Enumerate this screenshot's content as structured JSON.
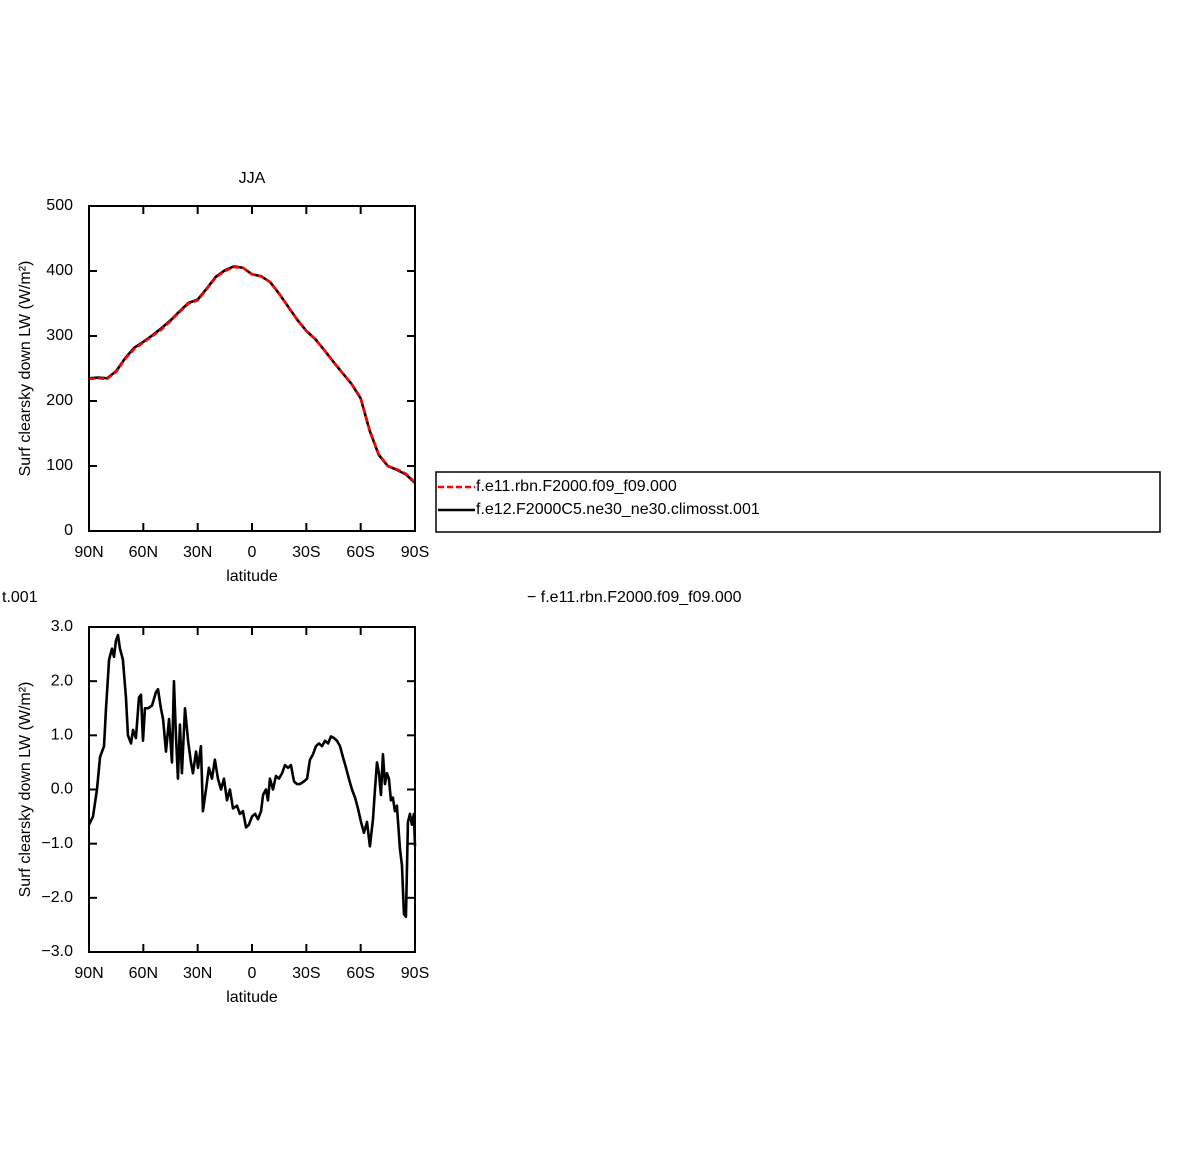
{
  "chart_data": [
    {
      "type": "line",
      "title": "JJA",
      "xlabel": "latitude",
      "ylabel": "Surf clearsky down LW (W/m²)",
      "x": [
        90,
        85,
        80,
        75,
        70,
        65,
        60,
        55,
        50,
        45,
        40,
        35,
        30,
        25,
        20,
        15,
        10,
        5,
        0,
        -5,
        -10,
        -15,
        -20,
        -25,
        -30,
        -35,
        -40,
        -45,
        -50,
        -55,
        -60,
        -65,
        -70,
        -75,
        -80,
        -85,
        -90
      ],
      "series": [
        {
          "name": "f.e11.rbn.F2000.f09_f09.000",
          "color": "#ff0000",
          "dashed": true,
          "values": [
            234,
            235,
            234,
            245,
            265,
            280,
            290,
            300,
            310,
            323,
            337,
            350,
            355,
            372,
            390,
            400,
            406,
            405,
            395,
            392,
            383,
            365,
            345,
            325,
            308,
            295,
            278,
            260,
            243,
            226,
            205,
            155,
            118,
            100,
            95,
            88,
            75
          ]
        },
        {
          "name": "f.e12.F2000C5.ne30_ne30.climosst.001",
          "color": "#000000",
          "dashed": false,
          "values": [
            235,
            236,
            235,
            246,
            266,
            282,
            291,
            301,
            312,
            324,
            338,
            351,
            356,
            373,
            391,
            401,
            407,
            405,
            395,
            392,
            383,
            365,
            345,
            325,
            308,
            295,
            278,
            260,
            243,
            226,
            204,
            154,
            117,
            100,
            94,
            87,
            74
          ]
        }
      ],
      "xlim": [
        90,
        -90
      ],
      "xticks": [
        {
          "value": 90,
          "label": "90N"
        },
        {
          "value": 60,
          "label": "60N"
        },
        {
          "value": 30,
          "label": "30N"
        },
        0,
        {
          "value": -30,
          "label": "30S"
        },
        {
          "value": -60,
          "label": "60S"
        },
        {
          "value": -90,
          "label": "90S"
        }
      ],
      "ylim": [
        0,
        500
      ],
      "yticks": [
        0,
        100,
        200,
        300,
        400,
        500
      ],
      "legend": "right"
    },
    {
      "type": "line",
      "xlabel": "latitude",
      "ylabel": "Surf clearsky down LW (W/m²)",
      "annotations": [
        "t.001",
        "− f.e11.rbn.F2000.f09_f09.000"
      ],
      "x": [
        90,
        87.8,
        85.6,
        83.9,
        81.7,
        80.6,
        78.9,
        77.3,
        76.2,
        75.1,
        74.0,
        72.9,
        71.3,
        69.6,
        68.5,
        66.8,
        65.7,
        64.1,
        62.4,
        61.3,
        60.2,
        59.1,
        57.4,
        55.2,
        53.0,
        51.9,
        50.3,
        49.1,
        47.5,
        45.8,
        44.2,
        43.1,
        42.0,
        40.9,
        39.8,
        38.7,
        37.0,
        35.3,
        33.7,
        32.6,
        30.9,
        29.8,
        28.2,
        27.1,
        25.4,
        23.8,
        22.1,
        20.5,
        18.8,
        17.1,
        15.5,
        13.8,
        12.2,
        10.5,
        8.3,
        6.7,
        5.0,
        3.3,
        1.7,
        0.0,
        -1.7,
        -3.3,
        -5.0,
        -6.1,
        -7.7,
        -8.8,
        -9.9,
        -11.6,
        -13.2,
        -14.9,
        -16.6,
        -18.2,
        -19.9,
        -21.5,
        -23.2,
        -24.8,
        -26.5,
        -28.7,
        -30.4,
        -32.0,
        -33.7,
        -35.3,
        -37.0,
        -38.7,
        -40.3,
        -42.0,
        -43.6,
        -45.3,
        -46.9,
        -48.6,
        -50.2,
        -51.9,
        -53.5,
        -55.2,
        -56.9,
        -58.5,
        -60.2,
        -61.8,
        -63.5,
        -65.1,
        -66.8,
        -67.9,
        -69.0,
        -70.1,
        -71.2,
        -72.3,
        -73.4,
        -74.5,
        -75.6,
        -76.7,
        -77.8,
        -78.9,
        -80.0,
        -81.7,
        -82.8,
        -83.9,
        -85.0,
        -86.1,
        -87.2,
        -88.3,
        -89.4,
        -90
      ],
      "series": [
        {
          "color": "#000000",
          "values": [
            -0.65,
            -0.5,
            0.0,
            0.6,
            0.8,
            1.5,
            2.4,
            2.6,
            2.45,
            2.75,
            2.85,
            2.6,
            2.4,
            1.7,
            1.0,
            0.85,
            1.1,
            0.95,
            1.7,
            1.75,
            0.9,
            1.5,
            1.5,
            1.55,
            1.8,
            1.85,
            1.5,
            1.3,
            0.7,
            1.3,
            0.5,
            2.0,
            1.0,
            0.2,
            1.2,
            0.3,
            1.5,
            0.9,
            0.5,
            0.3,
            0.7,
            0.4,
            0.8,
            -0.4,
            0.0,
            0.4,
            0.2,
            0.55,
            0.2,
            0.0,
            0.2,
            -0.2,
            0.0,
            -0.35,
            -0.3,
            -0.45,
            -0.4,
            -0.7,
            -0.65,
            -0.5,
            -0.45,
            -0.55,
            -0.4,
            -0.1,
            0.0,
            -0.2,
            0.2,
            0.0,
            0.25,
            0.2,
            0.3,
            0.45,
            0.4,
            0.45,
            0.15,
            0.1,
            0.1,
            0.15,
            0.2,
            0.55,
            0.65,
            0.8,
            0.85,
            0.8,
            0.9,
            0.85,
            0.98,
            0.95,
            0.9,
            0.8,
            0.6,
            0.4,
            0.2,
            0.0,
            -0.15,
            -0.35,
            -0.6,
            -0.8,
            -0.6,
            -1.05,
            -0.55,
            0.0,
            0.5,
            0.3,
            -0.1,
            0.65,
            0.1,
            0.3,
            0.2,
            -0.2,
            -0.15,
            -0.4,
            -0.3,
            -1.1,
            -1.4,
            -2.3,
            -2.35,
            -0.6,
            -0.45,
            -0.65,
            -0.45,
            -1.05
          ]
        }
      ],
      "xlim": [
        90,
        -90
      ],
      "xticks": [
        {
          "value": 90,
          "label": "90N"
        },
        {
          "value": 60,
          "label": "60N"
        },
        {
          "value": 30,
          "label": "30N"
        },
        0,
        {
          "value": -30,
          "label": "30S"
        },
        {
          "value": -60,
          "label": "60S"
        },
        {
          "value": -90,
          "label": "90S"
        }
      ],
      "ylim": [
        -3,
        3
      ],
      "yticks": [
        {
          "value": -3,
          "label": "−3.0"
        },
        {
          "value": -2,
          "label": "−2.0"
        },
        {
          "value": -1,
          "label": "−1.0"
        },
        {
          "value": 0,
          "label": "0.0"
        },
        {
          "value": 1,
          "label": "1.0"
        },
        {
          "value": 2,
          "label": "2.0"
        },
        {
          "value": 3,
          "label": "3.0"
        }
      ]
    }
  ]
}
